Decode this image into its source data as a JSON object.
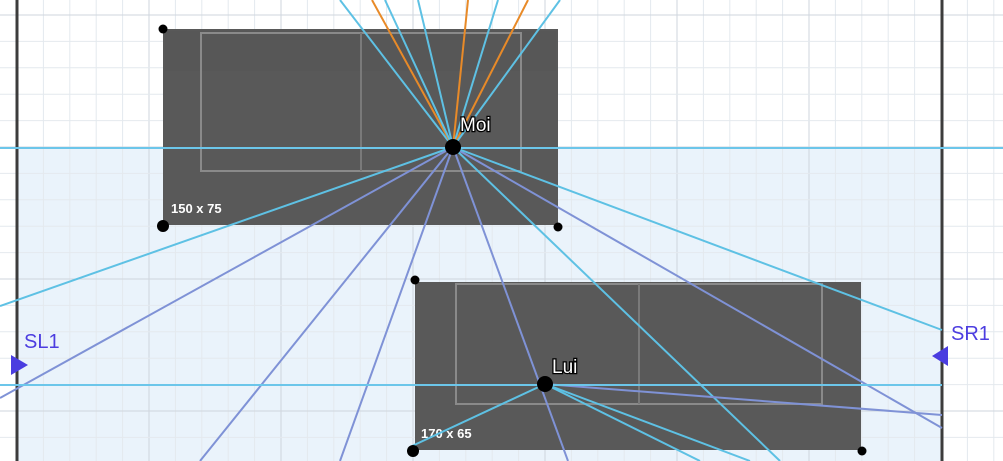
{
  "colors": {
    "grid_minor": "#e4e9ee",
    "grid_major": "#cfd6de",
    "wall": "#3c3c3c",
    "zone_fill": "#eaf3fb",
    "object_fill": "#595959",
    "object_inner": "#6b6b6b",
    "object_outline": "#8f8f8f",
    "ray_light": "#5ec1e4",
    "ray_blue": "#7f92d6",
    "ray_orange": "#e88a28",
    "horizontal_line": "#6cc6ea",
    "speaker_marker": "#4a3de0",
    "label_text": "#ffffff",
    "speaker_text": "#4c3de0"
  },
  "objects": [
    {
      "id": "sofa-1",
      "size_label": "150 x 75",
      "listener_label": "Moi"
    },
    {
      "id": "sofa-2",
      "size_label": "170 x 65",
      "listener_label": "Lui"
    }
  ],
  "speakers": {
    "left": {
      "label": "SL1",
      "icon": "triangle-right-icon"
    },
    "right": {
      "label": "SR1",
      "icon": "triangle-left-icon"
    }
  }
}
